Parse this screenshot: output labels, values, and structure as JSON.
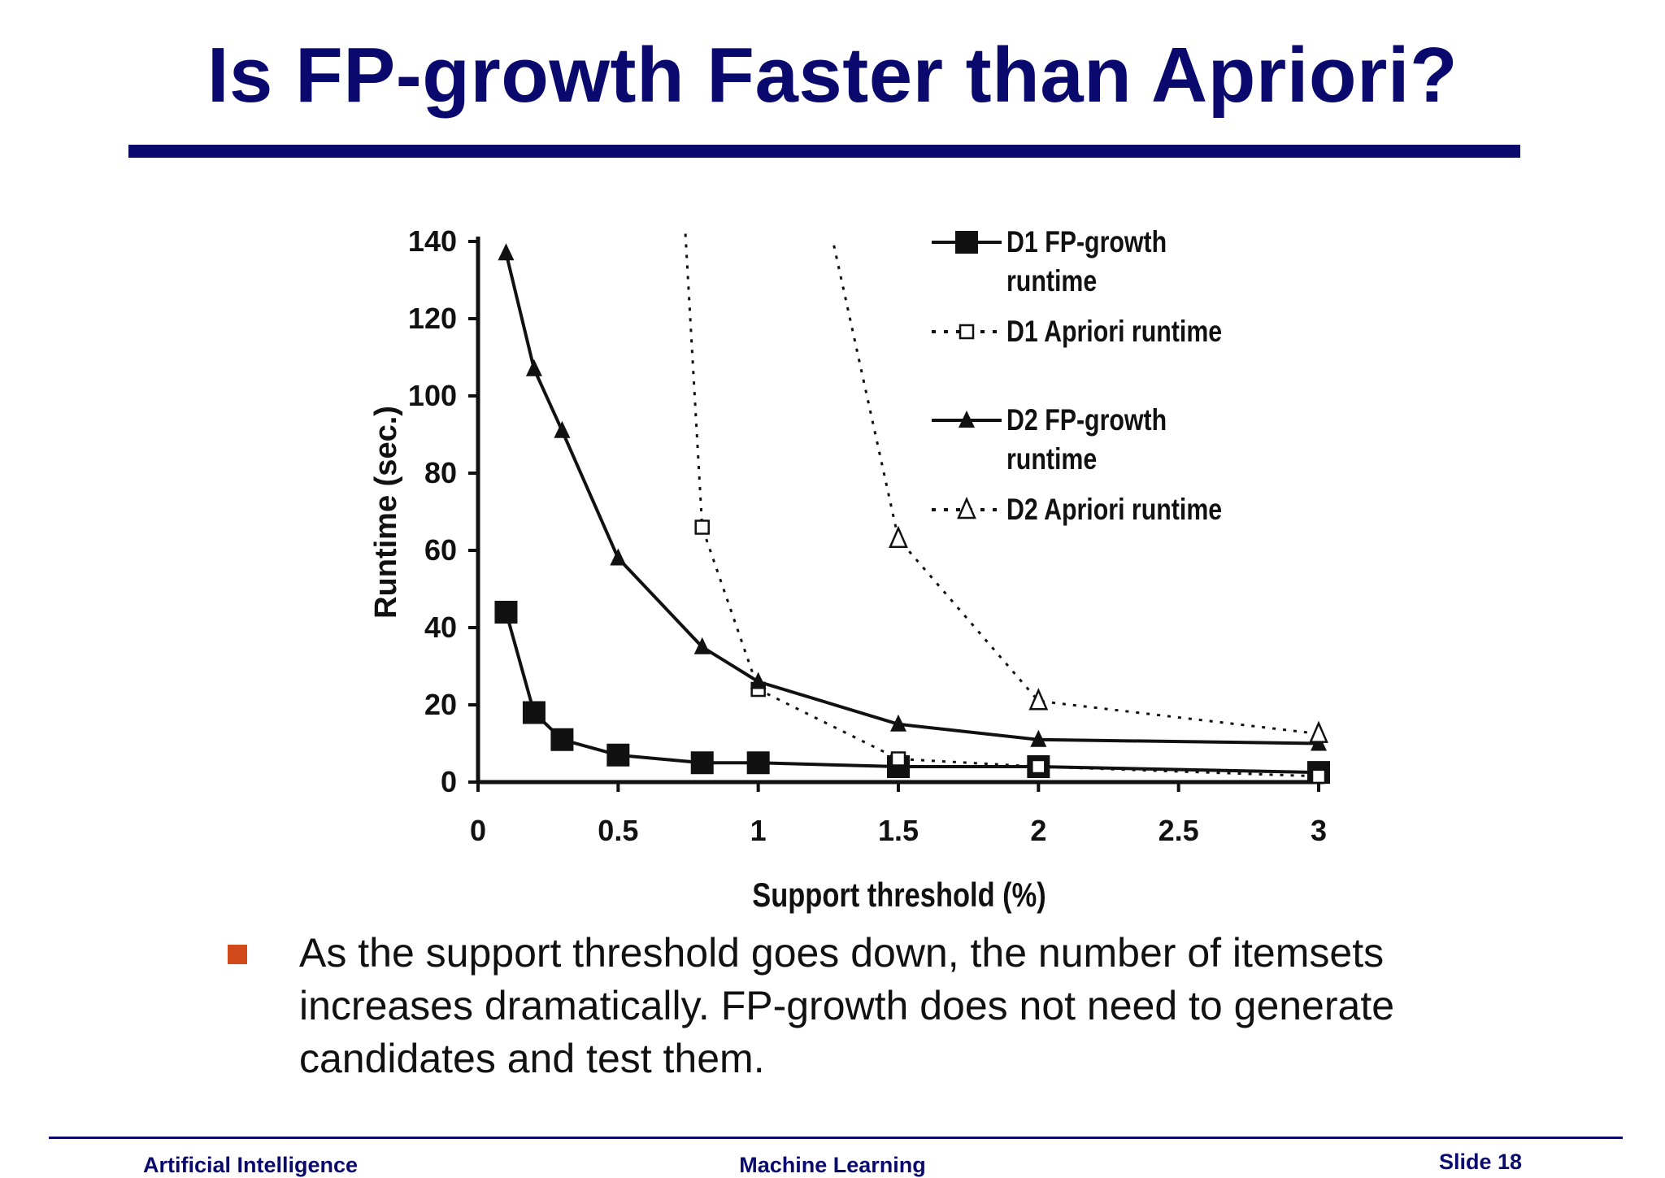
{
  "slide": {
    "title": "Is FP-growth Faster than Apriori?",
    "bullet": "As the support threshold goes down, the number of itemsets increases dramatically. FP-growth does not need to generate candidates and test them.",
    "footer_left": "Artificial Intelligence",
    "footer_center": "Machine Learning",
    "footer_right": "Slide 18",
    "title_color": "#0a0a6e",
    "bullet_color": "#d24a1c"
  },
  "chart_data": {
    "type": "line",
    "xlabel": "Support threshold (%)",
    "ylabel": "Runtime (sec.)",
    "xlim": [
      0,
      3
    ],
    "ylim": [
      0,
      140
    ],
    "xticks": [
      0,
      0.5,
      1,
      1.5,
      2,
      2.5,
      3
    ],
    "xtick_labels": [
      "0",
      "0.5",
      "1",
      "1.5",
      "2",
      "2.5",
      "3"
    ],
    "yticks": [
      0,
      20,
      40,
      60,
      80,
      100,
      120,
      140
    ],
    "ytick_labels": [
      "0",
      "20",
      "40",
      "60",
      "80",
      "100",
      "120",
      "140"
    ],
    "grid": false,
    "legend_position": "top-right",
    "series": [
      {
        "name": "D1 FP-growth runtime",
        "style": "solid",
        "marker": "filled-square",
        "x": [
          0.1,
          0.2,
          0.3,
          0.5,
          0.8,
          1,
          1.5,
          2,
          3
        ],
        "y": [
          44,
          18,
          11,
          7,
          5,
          5,
          4,
          4,
          2.5
        ]
      },
      {
        "name": "D1 Apriori runtime",
        "style": "dotted",
        "marker": "open-square",
        "x": [
          0.74,
          0.8,
          1,
          1.5,
          2,
          3
        ],
        "y": [
          142,
          66,
          24,
          6,
          4,
          1.5
        ]
      },
      {
        "name": "D2 FP-growth runtime",
        "style": "solid",
        "marker": "filled-triangle",
        "x": [
          0.1,
          0.2,
          0.3,
          0.5,
          0.8,
          1,
          1.5,
          2,
          3
        ],
        "y": [
          137,
          107,
          91,
          58,
          35,
          26,
          15,
          11,
          10
        ]
      },
      {
        "name": "D2 Apriori runtime",
        "style": "dotted",
        "marker": "open-triangle",
        "x": [
          1.27,
          1.5,
          2,
          3
        ],
        "y": [
          139,
          63,
          21,
          12.5
        ]
      }
    ],
    "legend_labels": [
      [
        "D1 FP-growth",
        "runtime"
      ],
      [
        "D1 Apriori runtime"
      ],
      [
        "D2 FP-growth",
        "runtime"
      ],
      [
        "D2 Apriori runtime"
      ]
    ]
  }
}
